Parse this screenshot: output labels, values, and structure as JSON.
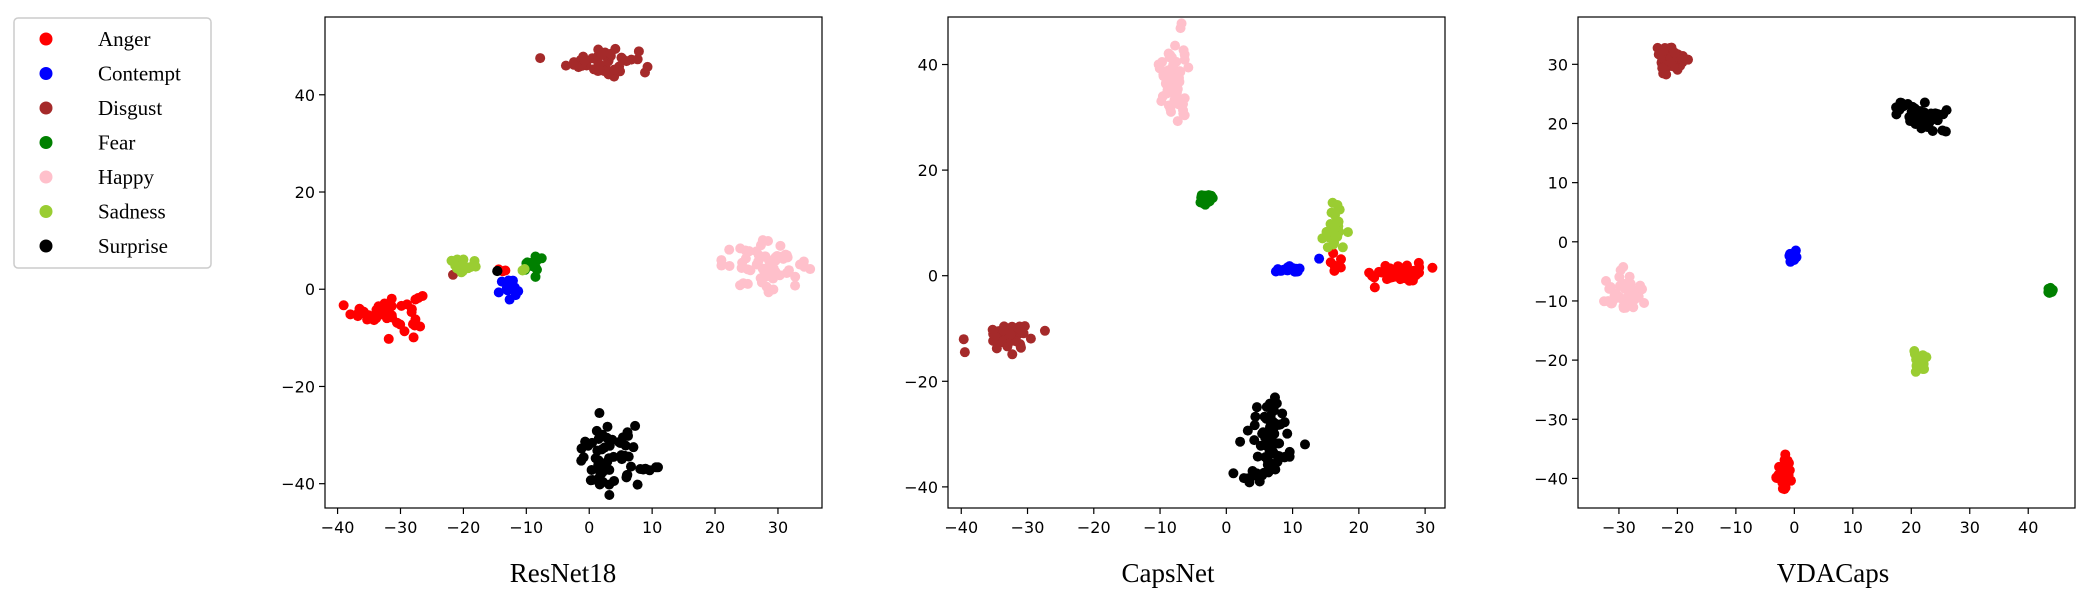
{
  "legend": {
    "entries": [
      {
        "name": "Anger",
        "color": "#ff0000"
      },
      {
        "name": "Contempt",
        "color": "#0000ff"
      },
      {
        "name": "Disgust",
        "color": "#a52a2a"
      },
      {
        "name": "Fear",
        "color": "#008000"
      },
      {
        "name": "Happy",
        "color": "#ffc0cb"
      },
      {
        "name": "Sadness",
        "color": "#9acd32"
      },
      {
        "name": "Surprise",
        "color": "#000000"
      }
    ]
  },
  "chart_data": [
    {
      "type": "scatter",
      "title": "ResNet18",
      "xlim": [
        -42,
        37
      ],
      "ylim": [
        -45,
        56
      ],
      "xticks": [
        -40,
        -30,
        -20,
        -10,
        0,
        10,
        20,
        30
      ],
      "yticks": [
        -40,
        -20,
        0,
        20,
        40
      ],
      "grid": false,
      "clusters": [
        {
          "label": "Anger",
          "cx": -32,
          "cy": -4.5,
          "sx": 2.8,
          "sy": 2.0,
          "n": 45
        },
        {
          "label": "Anger",
          "cx": -36,
          "cy": -4.7,
          "sx": 1.0,
          "sy": 0.3,
          "n": 4
        },
        {
          "label": "Anger",
          "cx": -13.5,
          "cy": 4.0,
          "sx": 0.6,
          "sy": 0.5,
          "n": 3
        },
        {
          "label": "Contempt",
          "cx": -12.8,
          "cy": 0.2,
          "sx": 0.9,
          "sy": 1.1,
          "n": 18
        },
        {
          "label": "Disgust",
          "cx": 2.0,
          "cy": 47.0,
          "sx": 2.8,
          "sy": 1.5,
          "n": 45
        },
        {
          "label": "Disgust",
          "cx": -22,
          "cy": 2.8,
          "sx": 0.2,
          "sy": 0.2,
          "n": 1
        },
        {
          "label": "Fear",
          "cx": -9.0,
          "cy": 5.0,
          "sx": 1.0,
          "sy": 0.8,
          "n": 14
        },
        {
          "label": "Happy",
          "cx": 28.0,
          "cy": 5.0,
          "sx": 3.4,
          "sy": 2.2,
          "n": 60
        },
        {
          "label": "Sadness",
          "cx": -19.5,
          "cy": 4.5,
          "sx": 1.3,
          "sy": 0.9,
          "n": 18
        },
        {
          "label": "Sadness",
          "cx": -10.5,
          "cy": 3.8,
          "sx": 0.4,
          "sy": 0.3,
          "n": 2
        },
        {
          "label": "Surprise",
          "cx": 3.0,
          "cy": -35.0,
          "sx": 2.5,
          "sy": 3.2,
          "n": 60
        },
        {
          "label": "Surprise",
          "cx": 10.0,
          "cy": -36.8,
          "sx": 1.3,
          "sy": 0.4,
          "n": 6
        },
        {
          "label": "Surprise",
          "cx": -14.5,
          "cy": 3.8,
          "sx": 0.3,
          "sy": 0.2,
          "n": 2
        }
      ]
    },
    {
      "type": "scatter",
      "title": "CapsNet",
      "xlim": [
        -42,
        33
      ],
      "ylim": [
        -44,
        49
      ],
      "xticks": [
        -40,
        -30,
        -20,
        -10,
        0,
        10,
        20,
        30
      ],
      "yticks": [
        -40,
        -20,
        0,
        20,
        40
      ],
      "grid": false,
      "clusters": [
        {
          "label": "Anger",
          "cx": 26.0,
          "cy": 0.5,
          "sx": 2.0,
          "sy": 0.9,
          "n": 45
        },
        {
          "label": "Anger",
          "cx": 17.0,
          "cy": 2.5,
          "sx": 0.8,
          "sy": 1.2,
          "n": 6
        },
        {
          "label": "Contempt",
          "cx": 9.5,
          "cy": 1.2,
          "sx": 0.8,
          "sy": 0.4,
          "n": 20
        },
        {
          "label": "Contempt",
          "cx": 14.0,
          "cy": 2.8,
          "sx": 0.2,
          "sy": 0.2,
          "n": 1
        },
        {
          "label": "Disgust",
          "cx": -33.0,
          "cy": -11.5,
          "sx": 2.0,
          "sy": 1.3,
          "n": 45
        },
        {
          "label": "Fear",
          "cx": -3.0,
          "cy": 14.5,
          "sx": 0.6,
          "sy": 0.5,
          "n": 22
        },
        {
          "label": "Happy",
          "cx": -8.0,
          "cy": 37.0,
          "sx": 1.0,
          "sy": 4.0,
          "n": 60
        },
        {
          "label": "Sadness",
          "cx": 16.5,
          "cy": 9.0,
          "sx": 0.9,
          "sy": 2.3,
          "n": 30
        },
        {
          "label": "Surprise",
          "cx": 6.5,
          "cy": -31.0,
          "sx": 2.0,
          "sy": 4.0,
          "n": 60
        },
        {
          "label": "Surprise",
          "cx": 3.5,
          "cy": -37.5,
          "sx": 1.2,
          "sy": 0.9,
          "n": 12
        }
      ]
    },
    {
      "type": "scatter",
      "title": "VDACaps",
      "xlim": [
        -37,
        48
      ],
      "ylim": [
        -45,
        38
      ],
      "xticks": [
        -30,
        -20,
        -10,
        0,
        10,
        20,
        30,
        40
      ],
      "yticks": [
        -40,
        -30,
        -20,
        -10,
        0,
        10,
        20,
        30
      ],
      "grid": false,
      "clusters": [
        {
          "label": "Anger",
          "cx": -1.5,
          "cy": -39.0,
          "sx": 0.8,
          "sy": 1.5,
          "n": 40
        },
        {
          "label": "Contempt",
          "cx": -0.3,
          "cy": -2.5,
          "sx": 0.3,
          "sy": 0.4,
          "n": 14
        },
        {
          "label": "Disgust",
          "cx": -21.5,
          "cy": 30.5,
          "sx": 1.5,
          "sy": 1.3,
          "n": 40
        },
        {
          "label": "Fear",
          "cx": 43.8,
          "cy": -8.3,
          "sx": 0.3,
          "sy": 0.3,
          "n": 12
        },
        {
          "label": "Happy",
          "cx": -29.0,
          "cy": -9.0,
          "sx": 1.5,
          "sy": 1.8,
          "n": 45
        },
        {
          "label": "Sadness",
          "cx": 21.5,
          "cy": -20.0,
          "sx": 0.7,
          "sy": 0.9,
          "n": 22
        },
        {
          "label": "Surprise",
          "cx": 21.5,
          "cy": 21.0,
          "sx": 2.3,
          "sy": 1.3,
          "n": 50
        }
      ]
    }
  ]
}
